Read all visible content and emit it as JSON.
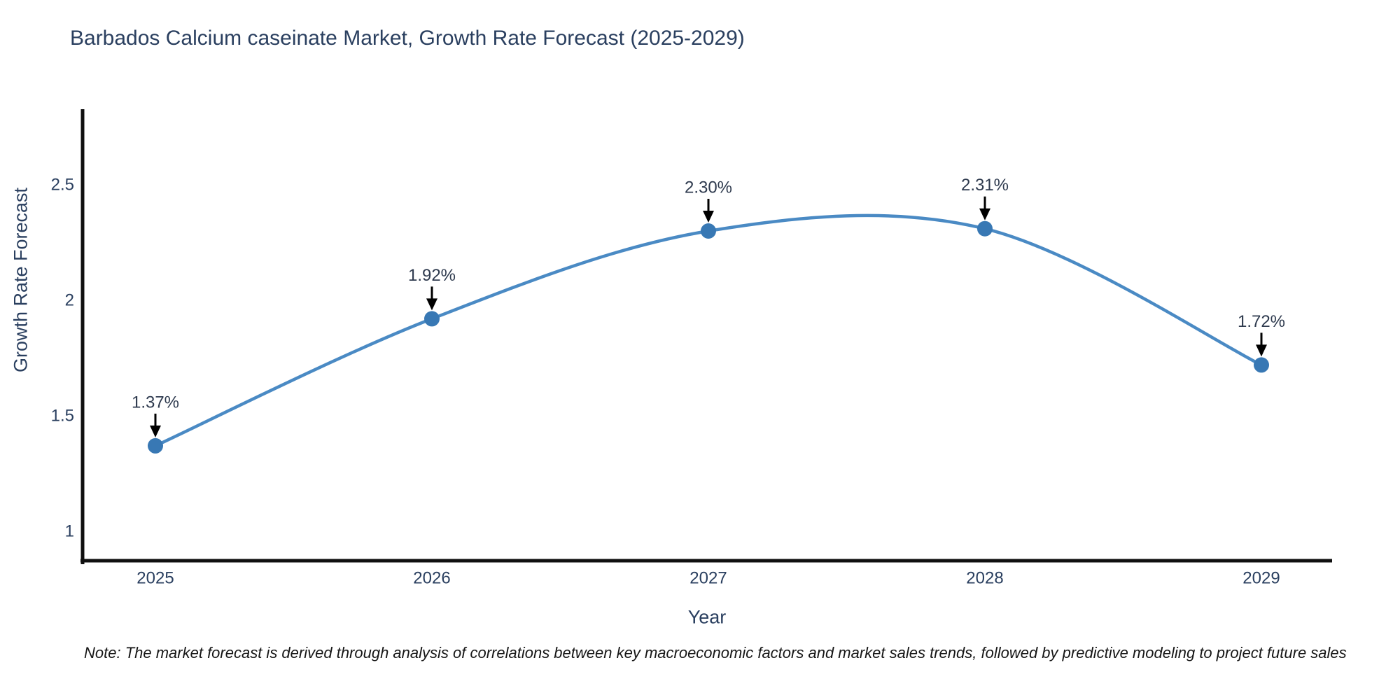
{
  "title": "Barbados Calcium caseinate Market, Growth Rate Forecast (2025-2029)",
  "note": "Note: The market forecast is derived through analysis of correlations between key macroeconomic factors and market sales trends, followed by predictive modeling to project future sales",
  "chart_data": {
    "type": "line",
    "title": "Barbados Calcium caseinate Market, Growth Rate Forecast (2025-2029)",
    "xlabel": "Year",
    "ylabel": "Growth Rate Forecast",
    "x": [
      2025,
      2026,
      2027,
      2028,
      2029
    ],
    "x_tick_labels": [
      "2025",
      "2026",
      "2027",
      "2028",
      "2029"
    ],
    "series": [
      {
        "name": "Growth Rate Forecast",
        "values": [
          1.37,
          1.92,
          2.3,
          2.31,
          1.72
        ]
      }
    ],
    "point_labels": [
      "1.37%",
      "1.92%",
      "2.30%",
      "2.31%",
      "1.72%"
    ],
    "y_ticks": [
      1,
      1.5,
      2,
      2.5
    ],
    "y_tick_labels": [
      "1",
      "1.5",
      "2",
      "2.5"
    ],
    "ylim": [
      0.86,
      2.82
    ],
    "xlim": [
      2024.73,
      2029.26
    ],
    "line_shape": "spline",
    "grid": false,
    "legend_visible": false,
    "colors": {
      "line": "#4a8ac4",
      "marker": "#3878b4",
      "axis": "#101010",
      "arrow": "#000000",
      "text": "#2a3f5f"
    }
  }
}
